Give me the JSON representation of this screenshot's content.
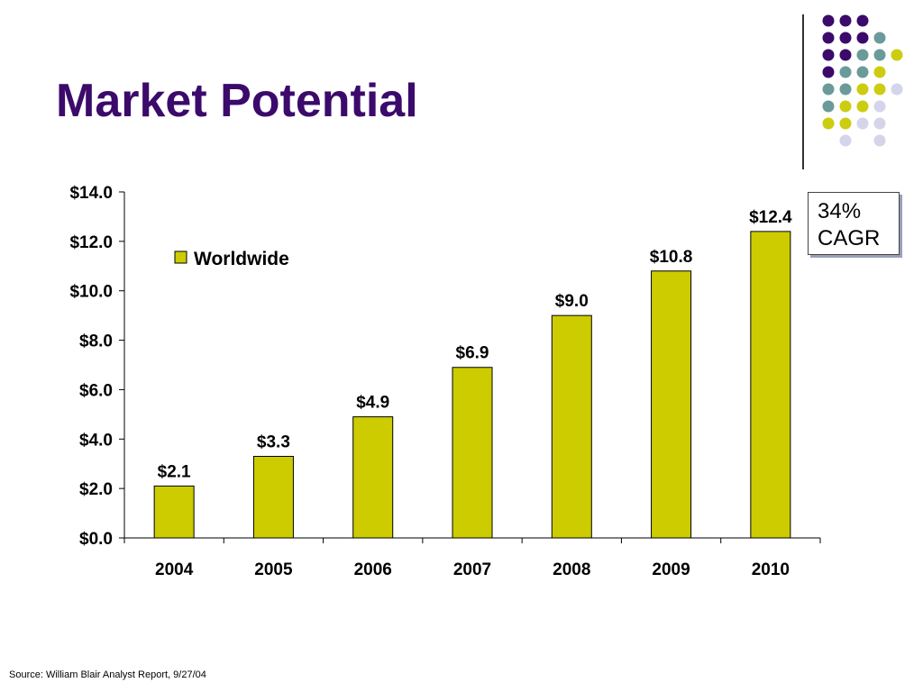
{
  "slide": {
    "title": "Market Potential",
    "source": "Source: William Blair Analyst Report,  9/27/04"
  },
  "callout": {
    "line1": "34%",
    "line2": "CAGR"
  },
  "colors": {
    "title": "#3b0a6b",
    "bar": "#cccc00",
    "dot_purple": "#3b0a6b",
    "dot_teal": "#6b9a9a",
    "dot_yellow": "#cccc11",
    "dot_lavender": "#d4d4ea"
  },
  "decoration": {
    "dot_grid": [
      [
        "purple",
        "purple",
        "purple",
        null,
        null
      ],
      [
        "purple",
        "purple",
        "purple",
        "teal",
        null
      ],
      [
        "purple",
        "purple",
        "teal",
        "teal",
        "yellow"
      ],
      [
        "purple",
        "teal",
        "teal",
        "yellow",
        null
      ],
      [
        "teal",
        "teal",
        "yellow",
        "yellow",
        "lavender"
      ],
      [
        "teal",
        "yellow",
        "yellow",
        "lavender",
        null
      ],
      [
        "yellow",
        "yellow",
        "lavender",
        "lavender",
        null
      ],
      [
        null,
        "lavender",
        null,
        "lavender",
        null
      ]
    ]
  },
  "chart_data": {
    "type": "bar",
    "categories": [
      "2004",
      "2005",
      "2006",
      "2007",
      "2008",
      "2009",
      "2010"
    ],
    "series": [
      {
        "name": "Worldwide",
        "values": [
          2.1,
          3.3,
          4.9,
          6.9,
          9.0,
          10.8,
          12.4
        ]
      }
    ],
    "data_labels": [
      "$2.1",
      "$3.3",
      "$4.9",
      "$6.9",
      "$9.0",
      "$10.8",
      "$12.4"
    ],
    "ylim": [
      0,
      14
    ],
    "y_ticks": [
      0,
      2,
      4,
      6,
      8,
      10,
      12,
      14
    ],
    "y_tick_labels": [
      "$0.0",
      "$2.0",
      "$4.0",
      "$6.0",
      "$8.0",
      "$10.0",
      "$12.0",
      "$14.0"
    ],
    "grid": false,
    "legend_position": "top-left"
  }
}
